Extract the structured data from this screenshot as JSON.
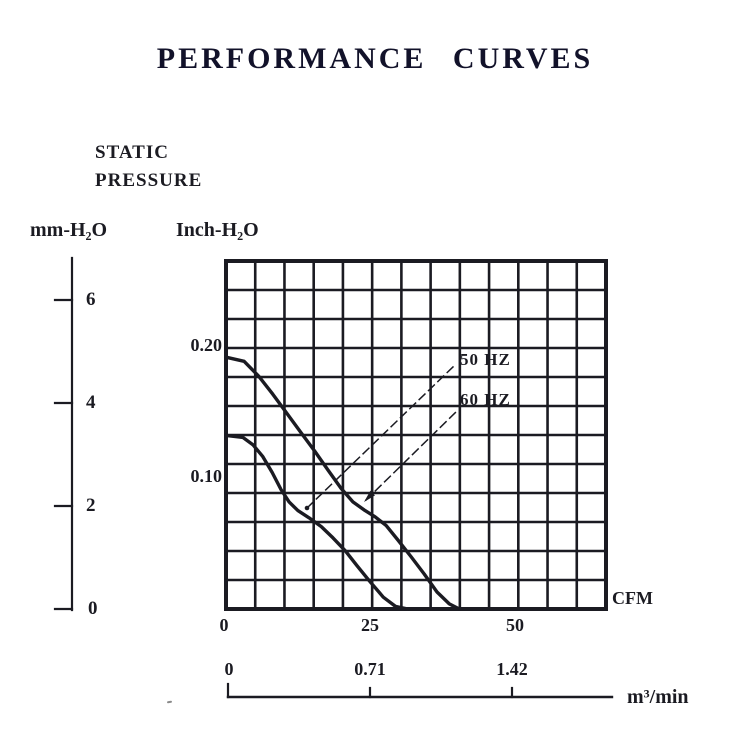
{
  "page": {
    "background": "#ffffff",
    "ink_color": "#1b1b22",
    "title_color": "#12122a"
  },
  "title": "PERFORMANCE CURVES",
  "labels": {
    "static_pressure": [
      "STATIC",
      "PRESSURE"
    ],
    "left_axis_unit": "mm-H₂O",
    "inner_axis_unit": "Inch-H₂O",
    "flow_unit": "CFM",
    "flow_unit_secondary": "m³/min"
  },
  "chart_data": {
    "type": "line",
    "title": "PERFORMANCE CURVES",
    "xlabel": "CFM",
    "ylabel": "STATIC PRESSURE",
    "grid": {
      "columns": 13,
      "rows": 12,
      "cfm_per_column": 5,
      "grid_on": true
    },
    "x_axis": {
      "unit": "CFM",
      "ticks": [
        0,
        25,
        50
      ],
      "tick_labels": [
        "0",
        "25",
        "50"
      ],
      "range": [
        0,
        65
      ]
    },
    "x_axis_secondary": {
      "unit": "m³/min",
      "ticks": [
        0,
        0.71,
        1.42
      ],
      "tick_labels": [
        "0",
        "0.71",
        "1.42"
      ]
    },
    "y_axis": {
      "unit": "mm-H₂O",
      "ticks": [
        0,
        2,
        4,
        6
      ],
      "tick_labels": [
        "0",
        "2",
        "4",
        "6"
      ],
      "range": [
        0,
        6.8
      ]
    },
    "y_axis_inner": {
      "unit": "Inch-H₂O",
      "ticks": [
        0.1,
        0.2
      ],
      "tick_labels": [
        "0.10",
        "0.20"
      ]
    },
    "legend_position": "inside-top-right",
    "series": [
      {
        "name": "50 HZ",
        "units": [
          "CFM",
          "mm-H2O"
        ],
        "points": [
          [
            0,
            3.37
          ],
          [
            2.9,
            3.33
          ],
          [
            4.6,
            3.19
          ],
          [
            6.3,
            2.96
          ],
          [
            7.9,
            2.65
          ],
          [
            9.4,
            2.32
          ],
          [
            10.8,
            2.08
          ],
          [
            12.3,
            1.91
          ],
          [
            14.2,
            1.77
          ],
          [
            16.3,
            1.6
          ],
          [
            18.3,
            1.38
          ],
          [
            20.4,
            1.13
          ],
          [
            22.4,
            0.84
          ],
          [
            24.5,
            0.55
          ],
          [
            26.9,
            0.23
          ],
          [
            29.0,
            0.05
          ],
          [
            31.1,
            0
          ]
        ]
      },
      {
        "name": "60 HZ",
        "units": [
          "CFM",
          "mm-H2O"
        ],
        "points": [
          [
            0,
            4.89
          ],
          [
            3.1,
            4.81
          ],
          [
            5.6,
            4.52
          ],
          [
            8.0,
            4.17
          ],
          [
            10.4,
            3.8
          ],
          [
            12.8,
            3.43
          ],
          [
            15.2,
            3.06
          ],
          [
            17.5,
            2.69
          ],
          [
            19.7,
            2.34
          ],
          [
            21.7,
            2.08
          ],
          [
            23.8,
            1.91
          ],
          [
            25.5,
            1.79
          ],
          [
            27.4,
            1.62
          ],
          [
            29.4,
            1.34
          ],
          [
            31.7,
            1.01
          ],
          [
            33.9,
            0.68
          ],
          [
            36.1,
            0.33
          ],
          [
            38.2,
            0.1
          ],
          [
            39.9,
            0
          ]
        ]
      }
    ]
  }
}
